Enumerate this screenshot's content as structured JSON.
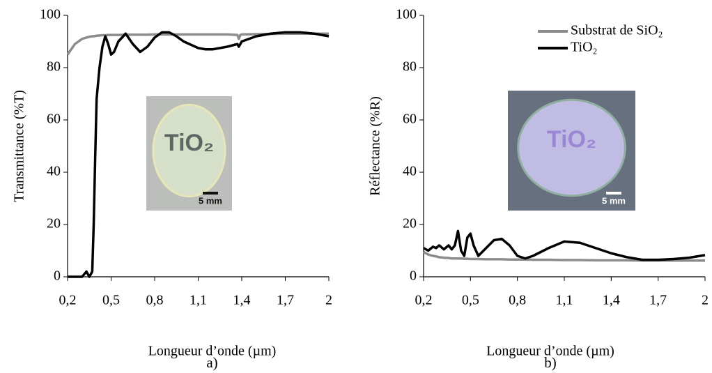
{
  "chart_data": [
    {
      "type": "line",
      "caption": "a)",
      "xlabel": "Longueur d’onde (µm)",
      "ylabel": "Transmittance (%T)",
      "annotations": [
        "TiO₂",
        "5 mm"
      ],
      "x": [
        0.2,
        0.25,
        0.3,
        0.33,
        0.35,
        0.37,
        0.38,
        0.39,
        0.4,
        0.42,
        0.44,
        0.46,
        0.48,
        0.5,
        0.52,
        0.55,
        0.6,
        0.65,
        0.7,
        0.75,
        0.8,
        0.85,
        0.9,
        0.95,
        1.0,
        1.1,
        1.15,
        1.2,
        1.3,
        1.37,
        1.38,
        1.39,
        1.4,
        1.5,
        1.6,
        1.7,
        1.8,
        1.9,
        2.0
      ],
      "series": [
        {
          "color": "#8c8c8c",
          "values": [
            85,
            89,
            91,
            91.5,
            91.8,
            92,
            92,
            92.1,
            92.2,
            92.3,
            92.4,
            92.4,
            92.5,
            92.5,
            92.5,
            92.5,
            92.6,
            92.6,
            92.6,
            92.6,
            92.7,
            92.7,
            92.7,
            92.7,
            92.7,
            92.7,
            92.7,
            92.7,
            92.7,
            92.5,
            91,
            92.5,
            92.7,
            92.8,
            92.9,
            93,
            93,
            93,
            93
          ]
        },
        {
          "color": "#000000",
          "values": [
            0,
            0,
            0,
            2,
            0,
            2,
            20,
            45,
            68,
            80,
            88,
            92,
            89,
            85,
            86,
            90,
            93,
            89,
            86,
            88,
            91.5,
            93.5,
            93.5,
            92,
            90,
            87.5,
            87,
            87,
            88,
            89,
            88,
            89,
            90,
            92,
            93,
            93.5,
            93.5,
            93,
            92
          ]
        }
      ],
      "xlim": [
        0.2,
        2
      ],
      "xticks": [
        {
          "value": 0.2,
          "label": "0,2"
        },
        {
          "value": 0.5,
          "label": "0,5"
        },
        {
          "value": 0.8,
          "label": "0,8"
        },
        {
          "value": 1.1,
          "label": "1,1"
        },
        {
          "value": 1.4,
          "label": "1,4"
        },
        {
          "value": 1.7,
          "label": "1,7"
        },
        2
      ],
      "ylim": [
        0,
        100
      ],
      "yticks": [
        0,
        20,
        40,
        60,
        80,
        100
      ]
    },
    {
      "type": "line",
      "caption": "b)",
      "xlabel": "Longueur d’onde (µm)",
      "ylabel": "Réflectance (%R)",
      "annotations": [
        "TiO₂",
        "5 mm"
      ],
      "legend": "upper right",
      "x": [
        0.2,
        0.23,
        0.26,
        0.28,
        0.3,
        0.33,
        0.36,
        0.38,
        0.4,
        0.42,
        0.44,
        0.46,
        0.48,
        0.5,
        0.52,
        0.55,
        0.6,
        0.65,
        0.7,
        0.75,
        0.8,
        0.85,
        0.9,
        1.0,
        1.1,
        1.2,
        1.3,
        1.4,
        1.5,
        1.6,
        1.7,
        1.8,
        1.9,
        2.0
      ],
      "series": [
        {
          "name": "Substrat de SiO₂",
          "color": "#8c8c8c",
          "values": [
            9.5,
            8.5,
            8,
            7.8,
            7.5,
            7.3,
            7.2,
            7,
            7,
            7,
            7,
            6.9,
            6.9,
            6.8,
            6.8,
            6.8,
            6.7,
            6.7,
            6.7,
            6.6,
            6.6,
            6.6,
            6.5,
            6.5,
            6.4,
            6.4,
            6.3,
            6.3,
            6.3,
            6.2,
            6.2,
            6.2,
            6.2,
            6.2
          ]
        },
        {
          "name": "TiO₂",
          "color": "#000000",
          "values": [
            11,
            10,
            11.5,
            11,
            12,
            10.5,
            12,
            10.5,
            12,
            17.5,
            10,
            8,
            15,
            16.5,
            12,
            8,
            11,
            14,
            14.5,
            12,
            8,
            7,
            8,
            11,
            13.5,
            13,
            11,
            9,
            7.5,
            6.5,
            6.5,
            6.8,
            7.3,
            8.3
          ]
        }
      ],
      "xlim": [
        0.2,
        2
      ],
      "xticks": [
        {
          "value": 0.2,
          "label": "0,2"
        },
        {
          "value": 0.5,
          "label": "0,5"
        },
        {
          "value": 0.8,
          "label": "0,8"
        },
        {
          "value": 1.1,
          "label": "1,1"
        },
        {
          "value": 1.4,
          "label": "1,4"
        },
        {
          "value": 1.7,
          "label": "1,7"
        },
        2
      ],
      "ylim": [
        0,
        100
      ],
      "yticks": [
        0,
        20,
        40,
        60,
        80,
        100
      ]
    }
  ]
}
